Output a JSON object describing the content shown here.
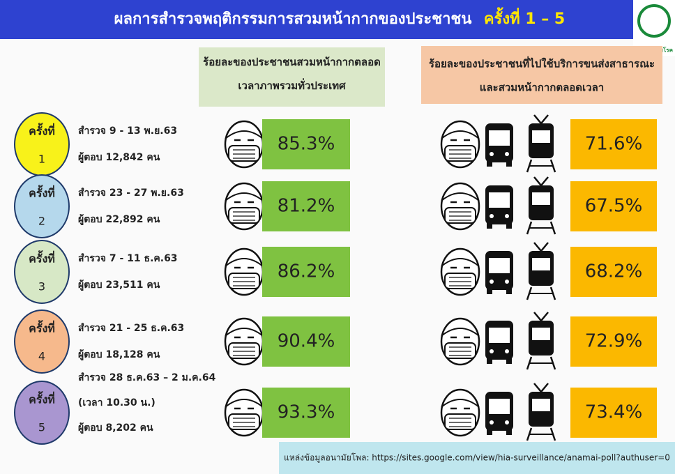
{
  "header": {
    "title": "ผลการสำรวจพฤติกรรมการสวมหน้ากากของประชาชน",
    "title_highlight": "ครั้งที่ 1 – 5",
    "logo_text": "กรมควบคุมโรค"
  },
  "columns": {
    "national": "ร้อยละของประชาชนสวมหน้ากากตลอดเวลาภาพรวมทั่วประเทศ",
    "transport": [
      "ร้อยละของประชาชนที่ไปใช้บริการขนส่งสาธารณะ",
      "และสวมหน้ากากตลอดเวลา"
    ]
  },
  "rounds": [
    {
      "label": "ครั้งที่",
      "number": "1",
      "lines": [
        "สำรวจ 9 - 13 พ.ย.63",
        "ผู้ตอบ 12,842 คน"
      ],
      "national": "85.3%",
      "transport": "71.6%"
    },
    {
      "label": "ครั้งที่",
      "number": "2",
      "lines": [
        "สำรวจ 23 - 27 พ.ย.63",
        "ผู้ตอบ 22,892 คน"
      ],
      "national": "81.2%",
      "transport": "67.5%"
    },
    {
      "label": "ครั้งที่",
      "number": "3",
      "lines": [
        "สำรวจ 7 - 11 ธ.ค.63",
        "ผู้ตอบ 23,511 คน"
      ],
      "national": "86.2%",
      "transport": "68.2%"
    },
    {
      "label": "ครั้งที่",
      "number": "4",
      "lines": [
        "สำรวจ 21 - 25 ธ.ค.63",
        "ผู้ตอบ 18,128 คน"
      ],
      "national": "90.4%",
      "transport": "72.9%"
    },
    {
      "label": "ครั้งที่",
      "number": "5",
      "lines": [
        "สำรวจ 28 ธ.ค.63 – 2 ม.ค.64",
        "(เวลา 10.30 น.)",
        "ผู้ตอบ 8,202 คน"
      ],
      "national": "93.3%",
      "transport": "73.4%"
    }
  ],
  "source": "แหล่งข้อมูลอนามัยโพล: https://sites.google.com/view/hia-surveillance/anamai-poll?authuser=0"
}
